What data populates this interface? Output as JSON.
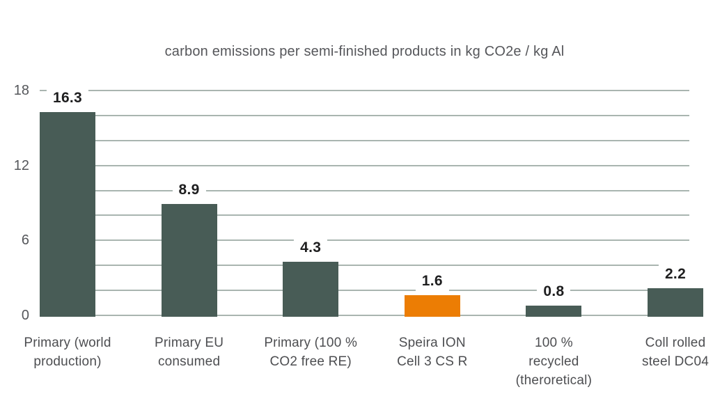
{
  "chart_data": {
    "type": "bar",
    "title": "carbon emissions per semi-finished products in kg CO2e / kg Al",
    "xlabel": "",
    "ylabel": "",
    "categories": [
      {
        "label": "Primary (world production)",
        "lines": [
          "Primary (world",
          "production)"
        ]
      },
      {
        "label": "Primary EU consumed",
        "lines": [
          "Primary EU",
          "consumed"
        ]
      },
      {
        "label": "Primary (100 % CO2 free RE)",
        "lines": [
          "Primary (100 %",
          "CO2 free RE)"
        ]
      },
      {
        "label": "Speira ION Cell 3 CS R",
        "lines": [
          "Speira ION",
          "Cell 3 CS R"
        ]
      },
      {
        "label": "100 % recycled (theroretical)",
        "lines": [
          "100 %",
          "recycled",
          "(theroretical)"
        ]
      },
      {
        "label": "Coll rolled steel DC04",
        "lines": [
          "Coll rolled",
          "steel DC04"
        ]
      }
    ],
    "values": [
      16.3,
      8.9,
      4.3,
      1.6,
      0.8,
      2.2
    ],
    "value_labels": [
      "16.3",
      "8.9",
      "4.3",
      "1.6",
      "0.8",
      "2.2"
    ],
    "highlight_index": 3,
    "yticks": [
      0,
      6,
      12,
      18
    ],
    "ylim": [
      0,
      18
    ],
    "gridline_step": 2,
    "grid": true,
    "legend": false,
    "colors": {
      "bar": "#485C56",
      "highlight": "#EC7D04",
      "gridline": "#A9B5B0",
      "title_text": "#55565a",
      "axis_text": "#55575b",
      "value_text": "#1e1e1f",
      "background": "#ffffff"
    }
  }
}
